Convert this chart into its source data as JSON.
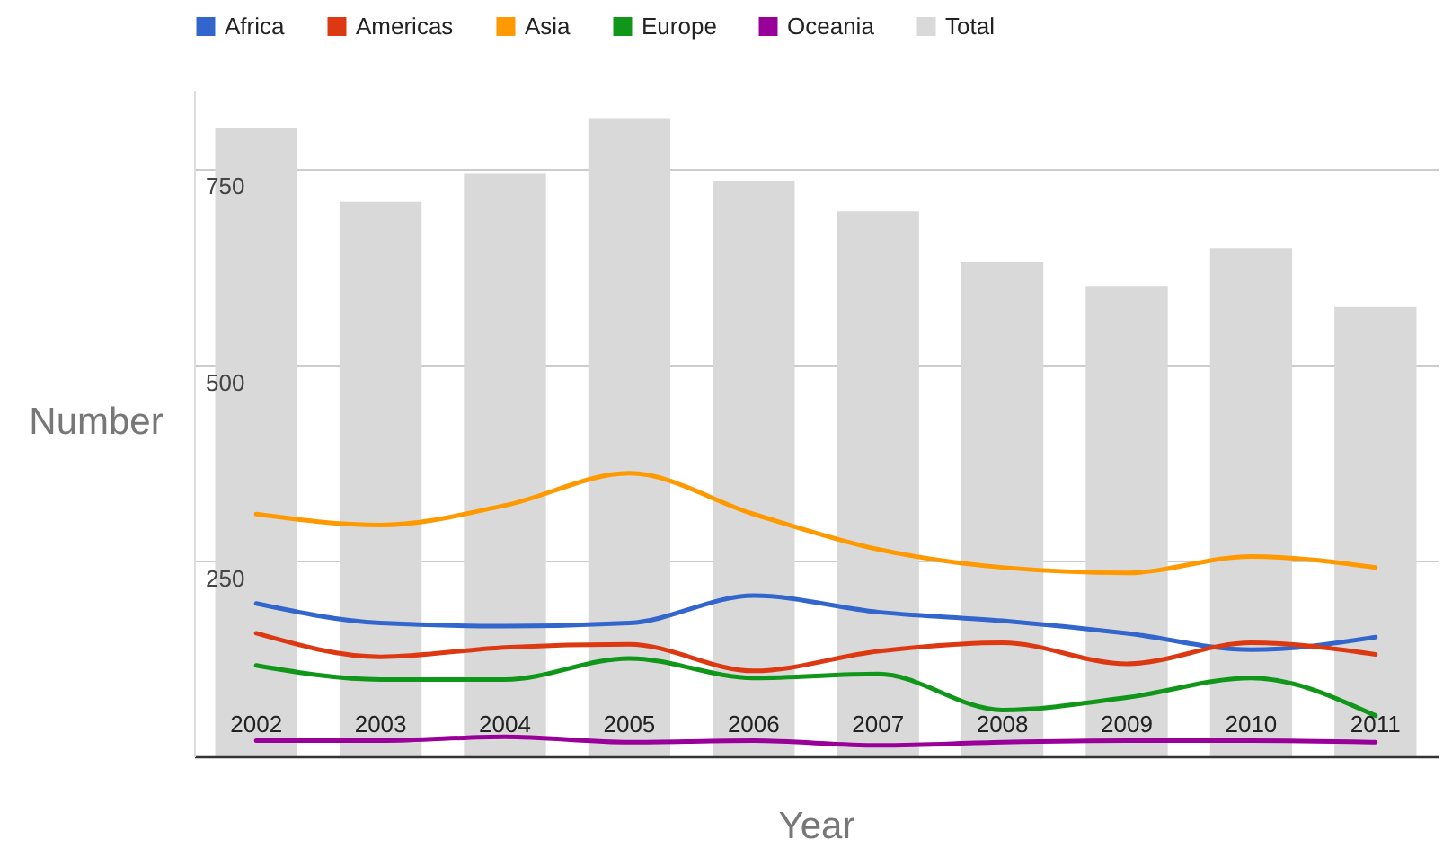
{
  "chart_data": {
    "type": "bar",
    "xlabel": "Year",
    "ylabel": "Number",
    "categories": [
      "2002",
      "2003",
      "2004",
      "2005",
      "2006",
      "2007",
      "2008",
      "2009",
      "2010",
      "2011"
    ],
    "series": [
      {
        "name": "Africa",
        "type": "line",
        "color": "#3366cc",
        "values": [
          195,
          170,
          166,
          170,
          205,
          184,
          173,
          157,
          136,
          152
        ]
      },
      {
        "name": "Americas",
        "type": "line",
        "color": "#dc3912",
        "values": [
          157,
          127,
          139,
          143,
          109,
          134,
          145,
          118,
          145,
          130
        ]
      },
      {
        "name": "Asia",
        "type": "line",
        "color": "#ff9900",
        "values": [
          309,
          295,
          320,
          361,
          309,
          264,
          241,
          234,
          255,
          241
        ]
      },
      {
        "name": "Europe",
        "type": "line",
        "color": "#109618",
        "values": [
          116,
          98,
          98,
          125,
          100,
          105,
          59,
          75,
          100,
          52
        ]
      },
      {
        "name": "Oceania",
        "type": "line",
        "color": "#990099",
        "values": [
          20,
          20,
          25,
          18,
          20,
          14,
          18,
          20,
          20,
          18
        ]
      },
      {
        "name": "Total",
        "color": "#d9d9d9",
        "values": [
          802,
          707,
          743,
          814,
          734,
          695,
          630,
          600,
          648,
          573
        ]
      }
    ],
    "ylim": [
      0,
      850
    ],
    "yticks": [
      250,
      500,
      750
    ],
    "grid": "y",
    "legend": "top left"
  }
}
